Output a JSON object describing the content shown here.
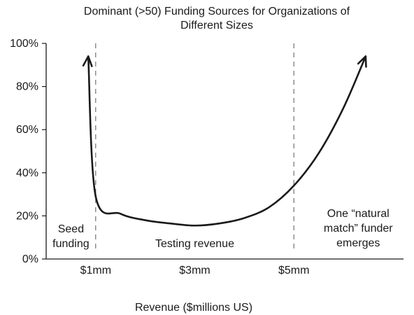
{
  "chart_data": {
    "type": "line",
    "title_lines": [
      "Dominant (>50) Funding Sources for Organizations of",
      "Different Sizes"
    ],
    "xlabel": "Revenue ($millions US)",
    "ylabel": "",
    "ylim": [
      0,
      100
    ],
    "yticks": [
      {
        "value": 0,
        "label": "0%"
      },
      {
        "value": 20,
        "label": "20%"
      },
      {
        "value": 40,
        "label": "40%"
      },
      {
        "value": 60,
        "label": "60%"
      },
      {
        "value": 80,
        "label": "80%"
      },
      {
        "value": 100,
        "label": "100%"
      }
    ],
    "xlim": [
      0,
      7.2
    ],
    "xticks": [
      {
        "value": 1,
        "label": "$1mm"
      },
      {
        "value": 3,
        "label": "$3mm"
      },
      {
        "value": 5,
        "label": "$5mm"
      }
    ],
    "dividers": [
      1,
      5
    ],
    "regions": [
      {
        "name": "seed",
        "lines": [
          "Seed",
          "funding"
        ],
        "x": 0.5,
        "align": "middle"
      },
      {
        "name": "testing",
        "lines": [
          "Testing revenue"
        ],
        "x": 3,
        "align": "middle"
      },
      {
        "name": "natural-match",
        "lines": [
          "One “natural",
          "match” funder",
          "emerges"
        ],
        "x": 6.3,
        "align": "middle"
      }
    ],
    "series": [
      {
        "values": [
          {
            "x": 0.85,
            "y": 94
          },
          {
            "x": 1.0,
            "y": 29
          },
          {
            "x": 1.5,
            "y": 21
          },
          {
            "x": 2.0,
            "y": 18
          },
          {
            "x": 2.5,
            "y": 16.5
          },
          {
            "x": 3.0,
            "y": 15.5
          },
          {
            "x": 3.5,
            "y": 16.5
          },
          {
            "x": 4.0,
            "y": 19
          },
          {
            "x": 4.5,
            "y": 24
          },
          {
            "x": 5.0,
            "y": 34
          },
          {
            "x": 5.5,
            "y": 49
          },
          {
            "x": 6.0,
            "y": 70
          },
          {
            "x": 6.45,
            "y": 94
          }
        ],
        "arrows": "both",
        "color": "#1a1a1a"
      }
    ],
    "grid": false
  }
}
